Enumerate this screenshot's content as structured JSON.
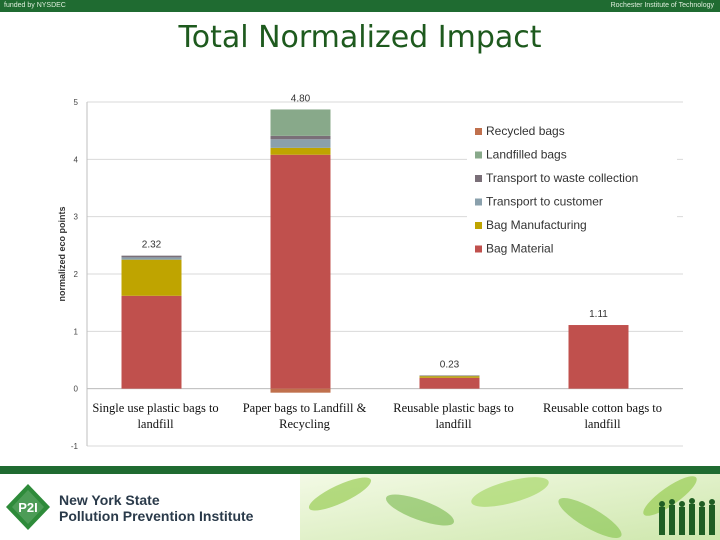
{
  "header": {
    "left_text": "funded by NYSDEC",
    "right_text": "Rochester Institute of Technology",
    "bar_color": "#1f6b31"
  },
  "slide": {
    "title": "Total Normalized Impact",
    "title_color": "#1e5a1e"
  },
  "chart_data": {
    "type": "bar",
    "stacked": true,
    "title": "",
    "xlabel": "",
    "ylabel": "normalized eco points",
    "ylim": [
      -1,
      5
    ],
    "yticks": [
      "-1",
      "0",
      "1",
      "2",
      "3",
      "4",
      "5"
    ],
    "grid": true,
    "legend_position": "top-right",
    "categories": [
      "Single use plastic bags to landfill",
      "Paper bags to Landfill & Recycling",
      "Reusable plastic bags to landfill",
      "Reusable cotton bags to landfill"
    ],
    "category_lines": [
      [
        "Single use plastic bags to",
        "landfill"
      ],
      [
        "Paper bags to Landfill &",
        "Recycling"
      ],
      [
        "Reusable plastic bags to",
        "landfill"
      ],
      [
        "Reusable cotton bags to",
        "landfill"
      ]
    ],
    "totals": [
      "2.32",
      "4.80",
      "0.23",
      "1.11"
    ],
    "series": [
      {
        "name": "Bag Material",
        "color": "#c0504d",
        "values": [
          1.62,
          4.08,
          0.19,
          1.11
        ]
      },
      {
        "name": "Bag Manufacturing",
        "color": "#bfa400",
        "values": [
          0.63,
          0.12,
          0.03,
          0
        ]
      },
      {
        "name": "Transport to customer",
        "color": "#8aa0ac",
        "values": [
          0.04,
          0.15,
          0.005,
          0
        ]
      },
      {
        "name": "Transport to waste collection",
        "color": "#7a6f78",
        "values": [
          0.03,
          0.06,
          0.005,
          0
        ]
      },
      {
        "name": "Landfilled bags",
        "color": "#88a98a",
        "values": [
          0,
          0.46,
          0,
          0
        ]
      },
      {
        "name": "Recycled bags",
        "color": "#c0704d",
        "values": [
          0,
          -0.07,
          0,
          0
        ]
      }
    ],
    "legend_order": [
      "Recycled bags",
      "Landfilled bags",
      "Transport to waste collection",
      "Transport to customer",
      "Bag Manufacturing",
      "Bag Material"
    ]
  },
  "footer": {
    "logo_abbrev": "P2I",
    "org_line1": "New York State",
    "org_line2": "Pollution Prevention Institute",
    "bar_color": "#1f6b31"
  }
}
